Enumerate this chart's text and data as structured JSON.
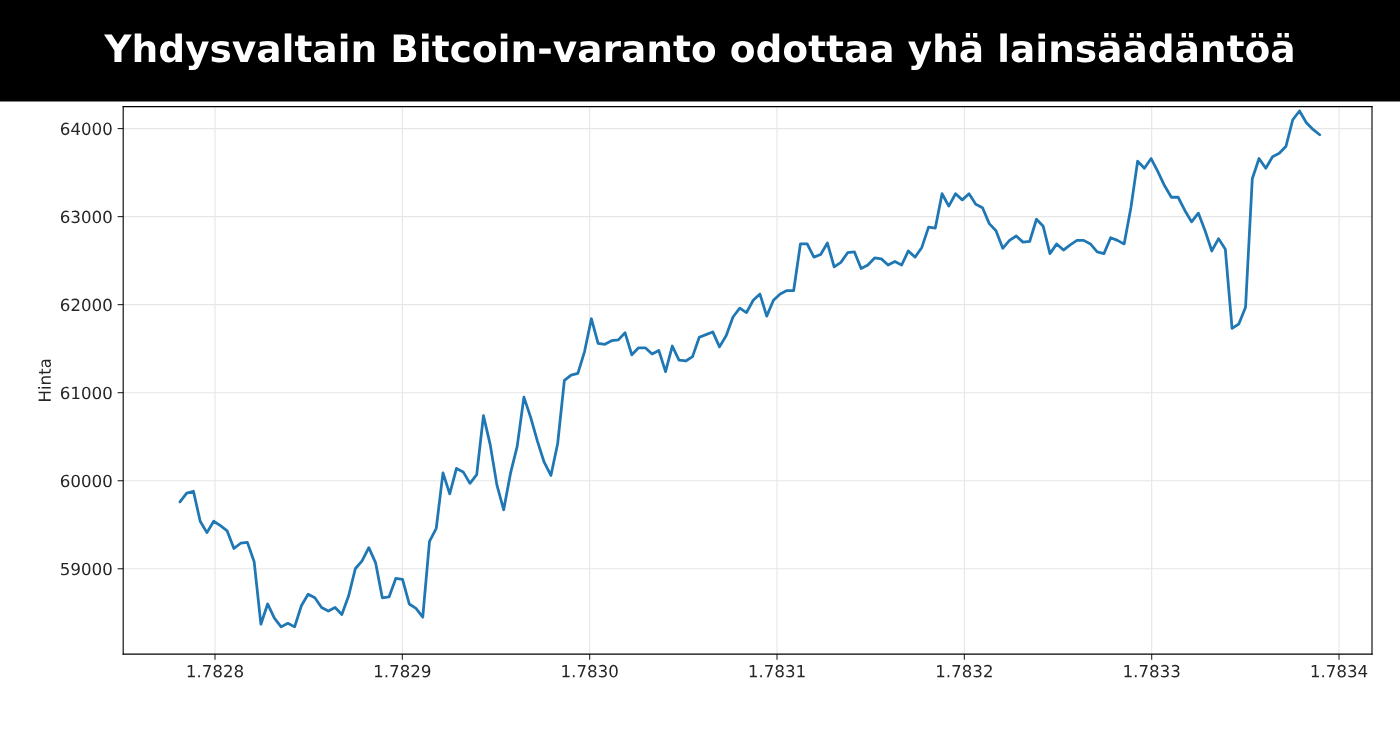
{
  "chart_data": {
    "type": "line",
    "title": "Yhdysvaltain Bitcoin-varanto odottaa yhä lainsäädäntöä",
    "ylabel": "Hinta",
    "x": [
      1.7827813,
      1.7827849,
      1.7827885,
      1.7827921,
      1.7827957,
      1.7827993,
      1.7828029,
      1.7828065,
      1.7828101,
      1.7828137,
      1.7828173,
      1.7828209,
      1.7828245,
      1.7828281,
      1.7828317,
      1.7828353,
      1.7828389,
      1.7828425,
      1.7828461,
      1.7828497,
      1.7828533,
      1.7828569,
      1.7828605,
      1.7828641,
      1.7828677,
      1.7828713,
      1.7828749,
      1.7828785,
      1.7828821,
      1.7828857,
      1.7828893,
      1.7828929,
      1.7828965,
      1.7829001,
      1.7829037,
      1.7829073,
      1.7829109,
      1.7829145,
      1.7829181,
      1.7829217,
      1.7829253,
      1.7829289,
      1.7829325,
      1.7829361,
      1.7829397,
      1.7829433,
      1.7829469,
      1.7829505,
      1.7829541,
      1.7829577,
      1.7829613,
      1.7829649,
      1.7829685,
      1.7829721,
      1.7829757,
      1.7829793,
      1.7829829,
      1.7829865,
      1.7829901,
      1.7829937,
      1.7829973,
      1.7830009,
      1.7830045,
      1.7830081,
      1.7830117,
      1.7830153,
      1.7830189,
      1.7830225,
      1.7830261,
      1.7830297,
      1.7830333,
      1.7830369,
      1.7830405,
      1.7830441,
      1.7830477,
      1.7830513,
      1.7830549,
      1.7830585,
      1.7830621,
      1.7830657,
      1.7830693,
      1.7830729,
      1.7830765,
      1.7830801,
      1.7830837,
      1.7830873,
      1.7830909,
      1.7830945,
      1.7830981,
      1.7831017,
      1.7831053,
      1.7831089,
      1.7831125,
      1.7831161,
      1.7831197,
      1.7831233,
      1.7831269,
      1.7831305,
      1.7831341,
      1.7831377,
      1.7831413,
      1.7831449,
      1.7831485,
      1.7831521,
      1.7831557,
      1.7831593,
      1.7831629,
      1.7831665,
      1.7831701,
      1.7831737,
      1.7831773,
      1.7831809,
      1.7831845,
      1.7831881,
      1.7831917,
      1.7831953,
      1.7831989,
      1.7832025,
      1.7832061,
      1.7832097,
      1.7832133,
      1.7832169,
      1.7832205,
      1.7832241,
      1.7832277,
      1.7832313,
      1.7832349,
      1.7832385,
      1.7832421,
      1.7832457,
      1.7832493,
      1.7832529,
      1.7832565,
      1.7832601,
      1.7832637,
      1.7832673,
      1.7832709,
      1.7832745,
      1.7832781,
      1.7832817,
      1.7832853,
      1.7832889,
      1.7832925,
      1.7832961,
      1.7832997,
      1.7833033,
      1.7833069,
      1.7833105,
      1.7833141,
      1.7833177,
      1.7833213,
      1.7833249,
      1.7833285,
      1.7833321,
      1.7833357,
      1.7833393,
      1.7833429,
      1.7833465,
      1.7833501,
      1.7833537,
      1.7833573,
      1.7833609,
      1.7833645,
      1.7833681,
      1.7833717,
      1.7833753,
      1.7833789,
      1.7833825,
      1.7833861,
      1.7833897
    ],
    "series": [
      {
        "color": "#1f77b4",
        "values": [
          59760,
          59860,
          59880,
          59540,
          59410,
          59540,
          59490,
          59430,
          59230,
          59290,
          59300,
          59080,
          58370,
          58600,
          58440,
          58340,
          58380,
          58340,
          58580,
          58710,
          58670,
          58560,
          58520,
          58560,
          58480,
          58690,
          59000,
          59090,
          59240,
          59070,
          58670,
          58680,
          58890,
          58880,
          58600,
          58550,
          58450,
          59310,
          59460,
          60090,
          59850,
          60140,
          60100,
          59970,
          60070,
          60740,
          60410,
          59950,
          59670,
          60080,
          60390,
          60950,
          60720,
          60450,
          60210,
          60060,
          60420,
          61140,
          61200,
          61220,
          61470,
          61840,
          61560,
          61550,
          61590,
          61600,
          61680,
          61430,
          61510,
          61510,
          61440,
          61480,
          61240,
          61530,
          61370,
          61360,
          61410,
          61630,
          61660,
          61690,
          61520,
          61650,
          61860,
          61960,
          61910,
          62050,
          62120,
          61870,
          62050,
          62120,
          62160,
          62160,
          62690,
          62690,
          62540,
          62570,
          62700,
          62430,
          62480,
          62590,
          62600,
          62410,
          62450,
          62530,
          62520,
          62450,
          62490,
          62450,
          62610,
          62540,
          62650,
          62880,
          62870,
          63260,
          63120,
          63260,
          63190,
          63260,
          63140,
          63100,
          62920,
          62840,
          62640,
          62730,
          62780,
          62710,
          62720,
          62970,
          62890,
          62580,
          62690,
          62620,
          62680,
          62730,
          62730,
          62690,
          62600,
          62580,
          62760,
          62730,
          62690,
          63100,
          63630,
          63550,
          63660,
          63510,
          63350,
          63220,
          63220,
          63070,
          62940,
          63040,
          62840,
          62610,
          62750,
          62630,
          61730,
          61780,
          61970,
          63430,
          63660,
          63550,
          63680,
          63720,
          63800,
          64100,
          64200,
          64070,
          63990,
          63930
        ]
      }
    ],
    "xlim": [
      1.782751,
      1.7834176
    ],
    "ylim": [
      58030,
      64250
    ],
    "xticks": [
      1.7828,
      1.7829,
      {
        "value": 1.783,
        "label": "1.7830"
      },
      1.7831,
      1.7832,
      1.7833,
      1.7834
    ],
    "yticks": [
      59000,
      60000,
      61000,
      62000,
      63000,
      64000
    ],
    "grid": true
  }
}
